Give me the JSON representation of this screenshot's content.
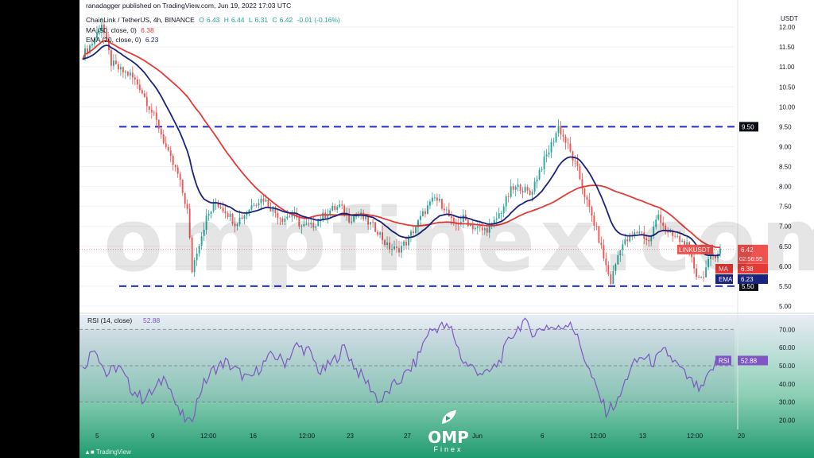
{
  "header": {
    "publisher": "ranadagger published on TradingView.com, Jun 19, 2022 17:03 UTC",
    "symbol": "ChainLink / TetherUS, 4h, BINANCE",
    "o_label": "O",
    "o_value": "6.43",
    "h_label": "H",
    "h_value": "6.44",
    "l_label": "L",
    "l_value": "6.31",
    "c_label": "C",
    "c_value": "6.42",
    "change": "-0.01 (-0.16%)",
    "ma_label": "MA (50, close, 0)",
    "ma_value": "6.38",
    "ema_label": "EMA (20, close, 0)",
    "ema_value": "6.23"
  },
  "watermark": "ompfinex.com",
  "logo": {
    "name": "OMP",
    "sub": "Finex",
    "icon": "leaf-play-icon"
  },
  "footer": {
    "brand": "TradingView",
    "icon": "tradingview-logo-icon"
  },
  "colors": {
    "up": "#26a69a",
    "down": "#ef5350",
    "ma": "#e53935",
    "ema": "#1a237e",
    "level": "#1e2bd6",
    "rsi": "#7e57c2",
    "rsi_band": "#7e57c2",
    "rsi_fill": "#2e9e78"
  },
  "chart_data": [
    {
      "type": "candlestick",
      "title": "ChainLink / TetherUS, 4h, BINANCE",
      "y_axis_label": "USDT",
      "ylim": [
        4.9,
        12.4
      ],
      "y_ticks": [
        "12.00",
        "11.50",
        "11.00",
        "10.50",
        "10.00",
        "9.50",
        "9.00",
        "8.50",
        "8.00",
        "7.50",
        "7.00",
        "6.50",
        "6.00",
        "5.50",
        "5.00"
      ],
      "x_ticks": [
        "5",
        "9",
        "12:00",
        "16",
        "12:00",
        "23",
        "27",
        "Jun",
        "6",
        "12:00",
        "13",
        "12:00",
        "20"
      ],
      "horizontal_levels": [
        {
          "value": 9.5,
          "label": "9.50"
        },
        {
          "value": 5.5,
          "label": "5.50"
        }
      ],
      "price_labels": [
        {
          "name": "LINKUSDT",
          "value": "6.42",
          "sub": "02:56:55",
          "color": "#ef5350"
        },
        {
          "name": "MA",
          "value": "6.38",
          "color": "#e53935"
        },
        {
          "name": "EMA",
          "value": "6.23",
          "color": "#1a237e"
        }
      ],
      "series": [
        {
          "name": "MA",
          "period": 50
        },
        {
          "name": "EMA",
          "period": 20
        }
      ],
      "close_path": [
        [
          0,
          11.3
        ],
        [
          4,
          11.6
        ],
        [
          8,
          12.1
        ],
        [
          12,
          11.1
        ],
        [
          16,
          10.9
        ],
        [
          20,
          10.8
        ],
        [
          24,
          10.5
        ],
        [
          28,
          10.0
        ],
        [
          32,
          9.5
        ],
        [
          36,
          8.8
        ],
        [
          40,
          8.3
        ],
        [
          44,
          7.4
        ],
        [
          46,
          5.9
        ],
        [
          48,
          6.4
        ],
        [
          52,
          7.2
        ],
        [
          56,
          7.6
        ],
        [
          60,
          7.4
        ],
        [
          64,
          7.1
        ],
        [
          68,
          7.3
        ],
        [
          72,
          7.6
        ],
        [
          76,
          7.7
        ],
        [
          80,
          7.4
        ],
        [
          84,
          7.2
        ],
        [
          88,
          7.3
        ],
        [
          92,
          7.0
        ],
        [
          96,
          7.0
        ],
        [
          100,
          7.2
        ],
        [
          104,
          7.4
        ],
        [
          108,
          7.5
        ],
        [
          112,
          7.2
        ],
        [
          116,
          7.3
        ],
        [
          120,
          7.1
        ],
        [
          124,
          6.9
        ],
        [
          128,
          6.5
        ],
        [
          132,
          6.4
        ],
        [
          136,
          6.6
        ],
        [
          140,
          7.0
        ],
        [
          144,
          7.4
        ],
        [
          148,
          7.7
        ],
        [
          152,
          7.5
        ],
        [
          156,
          7.0
        ],
        [
          160,
          7.2
        ],
        [
          164,
          7.0
        ],
        [
          168,
          6.9
        ],
        [
          172,
          7.0
        ],
        [
          176,
          7.4
        ],
        [
          180,
          7.9
        ],
        [
          184,
          8.0
        ],
        [
          188,
          7.8
        ],
        [
          192,
          8.4
        ],
        [
          196,
          8.9
        ],
        [
          200,
          9.5
        ],
        [
          204,
          9.0
        ],
        [
          208,
          8.4
        ],
        [
          212,
          7.6
        ],
        [
          216,
          6.9
        ],
        [
          220,
          6.0
        ],
        [
          222,
          5.6
        ],
        [
          226,
          6.5
        ],
        [
          230,
          6.7
        ],
        [
          234,
          6.9
        ],
        [
          238,
          6.6
        ],
        [
          242,
          7.3
        ],
        [
          246,
          6.8
        ],
        [
          250,
          6.7
        ],
        [
          254,
          6.5
        ],
        [
          258,
          5.8
        ],
        [
          260,
          5.7
        ],
        [
          264,
          6.2
        ],
        [
          268,
          6.42
        ]
      ]
    },
    {
      "type": "line",
      "title": "RSI (14, close)",
      "value": "52.88",
      "label": "RSI",
      "ylim": [
        15,
        78
      ],
      "y_ticks": [
        "70.00",
        "60.00",
        "50.00",
        "40.00",
        "30.00",
        "20.00"
      ],
      "bands": [
        70,
        50,
        30
      ],
      "values": [
        [
          0,
          48
        ],
        [
          5,
          61
        ],
        [
          10,
          45
        ],
        [
          15,
          50
        ],
        [
          20,
          38
        ],
        [
          25,
          32
        ],
        [
          30,
          36
        ],
        [
          35,
          45
        ],
        [
          40,
          25
        ],
        [
          45,
          18
        ],
        [
          50,
          38
        ],
        [
          55,
          48
        ],
        [
          60,
          52
        ],
        [
          65,
          47
        ],
        [
          70,
          42
        ],
        [
          75,
          50
        ],
        [
          80,
          56
        ],
        [
          85,
          52
        ],
        [
          90,
          61
        ],
        [
          95,
          58
        ],
        [
          100,
          46
        ],
        [
          105,
          52
        ],
        [
          110,
          60
        ],
        [
          115,
          48
        ],
        [
          120,
          40
        ],
        [
          125,
          30
        ],
        [
          130,
          38
        ],
        [
          135,
          44
        ],
        [
          140,
          52
        ],
        [
          145,
          68
        ],
        [
          150,
          72
        ],
        [
          155,
          70
        ],
        [
          160,
          52
        ],
        [
          165,
          48
        ],
        [
          170,
          45
        ],
        [
          175,
          52
        ],
        [
          180,
          66
        ],
        [
          185,
          74
        ],
        [
          190,
          68
        ],
        [
          195,
          72
        ],
        [
          200,
          70
        ],
        [
          205,
          75
        ],
        [
          210,
          58
        ],
        [
          215,
          40
        ],
        [
          220,
          25
        ],
        [
          225,
          30
        ],
        [
          230,
          48
        ],
        [
          235,
          55
        ],
        [
          240,
          52
        ],
        [
          245,
          58
        ],
        [
          250,
          50
        ],
        [
          255,
          42
        ],
        [
          260,
          36
        ],
        [
          265,
          49
        ],
        [
          268,
          52.88
        ]
      ]
    }
  ]
}
